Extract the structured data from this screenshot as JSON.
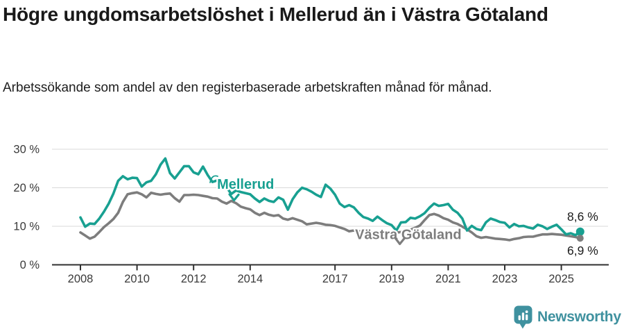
{
  "header": {
    "title": "Högre ungdomsarbetslöshet i Mellerud än i Västra Götaland",
    "subtitle": "Arbetssökande som andel av den registerbaserade arbetskraften månad för månad."
  },
  "footer": {
    "brand": "Newsworthy"
  },
  "colors": {
    "mellerud": "#18a091",
    "vastra_gotaland": "#7d7d7d",
    "axis": "#2f2f2f",
    "grid": "#d9d9d9",
    "tick_text": "#3a3a3a",
    "end_label_text": "#1a1a1a",
    "brand": "#3f919f"
  },
  "chart_data": {
    "type": "line",
    "title": "Högre ungdomsarbetslöshet i Mellerud än i Västra Götaland",
    "ylabel": "",
    "xlabel": "",
    "grid": true,
    "ylim": [
      0,
      30
    ],
    "x_range_years": [
      2008.0,
      2025.67
    ],
    "x_start": 2008.0,
    "x_step_years": 0.166667,
    "yticks": [
      {
        "v": 30,
        "label": "30 %"
      },
      {
        "v": 20,
        "label": "20 %"
      },
      {
        "v": 10,
        "label": "10 %"
      },
      {
        "v": 0,
        "label": "0 %"
      }
    ],
    "xticks": [
      {
        "year": 2008,
        "label": "2008"
      },
      {
        "year": 2010,
        "label": "2010"
      },
      {
        "year": 2012,
        "label": "2012"
      },
      {
        "year": 2014,
        "label": "2014"
      },
      {
        "year": 2017,
        "label": "2017"
      },
      {
        "year": 2019,
        "label": "2019"
      },
      {
        "year": 2021,
        "label": "2021"
      },
      {
        "year": 2023,
        "label": "2023"
      },
      {
        "year": 2025,
        "label": "2025"
      }
    ],
    "series": [
      {
        "name": "Västra Götaland",
        "slug": "vastra-gotaland",
        "color": "#7d7d7d",
        "end_label": "6,9 %",
        "end_value": 6.9,
        "values": [
          8.4,
          7.6,
          6.8,
          7.3,
          8.5,
          9.8,
          10.8,
          11.9,
          13.5,
          16.3,
          18.3,
          18.6,
          18.8,
          18.3,
          17.5,
          18.7,
          18.4,
          18.2,
          18.4,
          18.5,
          17.3,
          16.4,
          18.1,
          18.1,
          18.2,
          18.1,
          17.9,
          17.7,
          17.3,
          17.2,
          16.4,
          15.9,
          16.6,
          16.0,
          15.1,
          14.7,
          14.4,
          13.5,
          12.9,
          13.5,
          13.0,
          12.7,
          12.9,
          12.0,
          11.7,
          12.1,
          11.7,
          11.3,
          10.5,
          10.7,
          10.9,
          10.7,
          10.4,
          10.3,
          10.1,
          9.7,
          9.3,
          8.7,
          8.9,
          8.7,
          8.6,
          8.5,
          8.4,
          8.5,
          8.4,
          8.3,
          8.3,
          8.4,
          8.5,
          8.7,
          9.1,
          9.6,
          10.2,
          11.6,
          12.9,
          13.2,
          12.8,
          12.1,
          11.7,
          11.0,
          10.6,
          9.9,
          9.2,
          8.4,
          7.4,
          7.0,
          7.2,
          7.0,
          6.8,
          6.7,
          6.6,
          6.4,
          6.7,
          6.9,
          7.2,
          7.3,
          7.3,
          7.6,
          7.9,
          7.9,
          8.0,
          7.9,
          7.8,
          7.6,
          7.4,
          7.2,
          6.9
        ]
      },
      {
        "name": "Mellerud",
        "slug": "mellerud",
        "color": "#18a091",
        "end_label": "8,6 %",
        "end_value": 8.6,
        "values": [
          12.3,
          9.9,
          10.7,
          10.6,
          12.0,
          13.8,
          15.9,
          18.5,
          21.8,
          23.0,
          22.2,
          22.6,
          22.5,
          20.3,
          21.4,
          21.8,
          23.5,
          26.0,
          27.6,
          23.8,
          22.4,
          24.0,
          25.6,
          25.6,
          24.0,
          23.5,
          25.5,
          23.3,
          21.5,
          21.9,
          21.2,
          20.1,
          18.4,
          19.3,
          18.9,
          18.6,
          18.3,
          17.2,
          16.3,
          17.2,
          16.6,
          16.3,
          17.5,
          16.9,
          14.3,
          17.0,
          18.8,
          20.0,
          19.6,
          19.0,
          18.2,
          17.6,
          20.8,
          19.8,
          18.2,
          15.9,
          15.0,
          15.5,
          14.9,
          13.5,
          12.4,
          12.0,
          11.4,
          12.5,
          11.6,
          10.8,
          10.3,
          8.9,
          11.0,
          11.1,
          12.2,
          12.0,
          12.6,
          13.4,
          14.8,
          15.9,
          15.3,
          15.5,
          15.8,
          14.3,
          13.5,
          12.0,
          8.9,
          10.1,
          9.3,
          9.0,
          11.0,
          12.0,
          11.6,
          11.1,
          10.9,
          9.7,
          10.6,
          10.0,
          10.1,
          9.7,
          9.4,
          10.4,
          10.0,
          9.3,
          9.9,
          10.4,
          9.2,
          7.9,
          8.2,
          7.7,
          8.6
        ]
      }
    ],
    "annotations": [
      {
        "text": "Mellerud",
        "slug": "mellerud",
        "color": "#18a091",
        "x_year": 2012.83,
        "y_value": 19.7,
        "arrow": {
          "x_year": 2013.43,
          "y_value": 16.75
        }
      },
      {
        "text": "Västra Götaland",
        "slug": "vastra-gotaland",
        "color": "#7d7d7d",
        "x_year": 2017.71,
        "y_value": 6.7,
        "arrow": {
          "x_year": 2019.29,
          "y_value": 5.4
        }
      }
    ],
    "legend_position": "inline-labels"
  }
}
